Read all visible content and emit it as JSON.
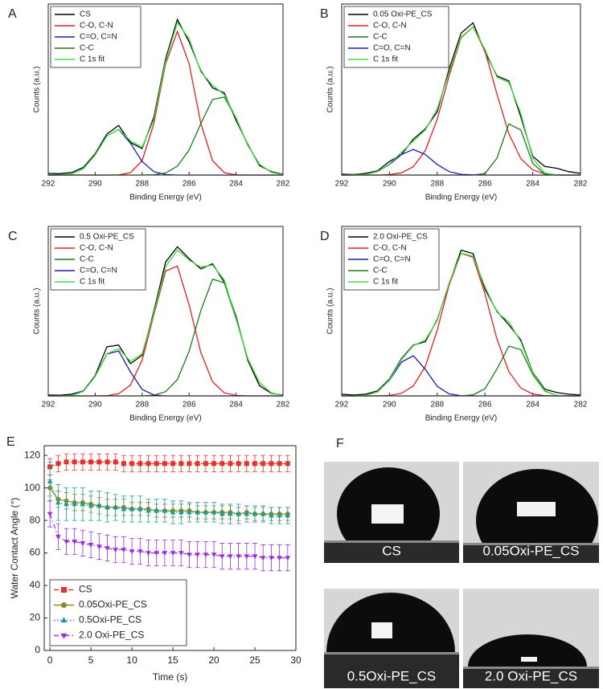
{
  "chart_data": [
    {
      "type": "line",
      "panel_label": "A",
      "xlabel": "Binding Energy (eV)",
      "ylabel": "Counts (a.u.)",
      "x": [
        292,
        291.5,
        291,
        290.5,
        290,
        289.5,
        289,
        288.5,
        288,
        287.5,
        287,
        286.5,
        286,
        285.5,
        285,
        284.5,
        284,
        283.5,
        283,
        282.5,
        282
      ],
      "xlim": [
        292,
        282
      ],
      "xticks": [
        292,
        290,
        288,
        286,
        284,
        282
      ],
      "ylim": [
        0,
        100
      ],
      "series": [
        {
          "name": "CS",
          "color": "#000000",
          "values": [
            1,
            0.8,
            1.5,
            4.5,
            12.5,
            24,
            29,
            19,
            15.5,
            34,
            68,
            91,
            78,
            61,
            51,
            48,
            32,
            18,
            5.5,
            2,
            0.5
          ]
        },
        {
          "name": "C-O, C-N",
          "color": "#e02020",
          "values": [
            0,
            0,
            0,
            0,
            0,
            0,
            0.1,
            1.4,
            8.4,
            30.2,
            65.1,
            84,
            65.1,
            30.2,
            8.4,
            1.4,
            0.1,
            0,
            0,
            0,
            0
          ]
        },
        {
          "name": "C=O, C=N",
          "color": "#1a1ab0",
          "values": [
            0,
            0.1,
            0.7,
            3.7,
            11.8,
            22.9,
            26.7,
            18.7,
            7.9,
            2.0,
            0.3,
            0,
            0,
            0,
            0,
            0,
            0,
            0,
            0,
            0,
            0
          ]
        },
        {
          "name": "C-C",
          "color": "#1a7a1a",
          "values": [
            0,
            0,
            0,
            0,
            0,
            0,
            0,
            0,
            0,
            0.2,
            1.2,
            5.2,
            14.6,
            30.1,
            44.2,
            45.6,
            33.4,
            17.4,
            6.3,
            1.6,
            0.3
          ]
        },
        {
          "name": "C 1s fit",
          "color": "#3ee03e",
          "values": [
            0,
            0.1,
            0.7,
            3.7,
            11.8,
            22.9,
            26.8,
            20.1,
            16.3,
            32.4,
            66.6,
            89.2,
            79.7,
            60.3,
            52.6,
            47.0,
            33.5,
            17.4,
            6.3,
            1.6,
            0.3
          ]
        }
      ]
    },
    {
      "type": "line",
      "panel_label": "B",
      "xlabel": "Binding Energy (eV)",
      "ylabel": "Counts (a.u.)",
      "x": [
        292,
        291.5,
        291,
        290.5,
        290,
        289.5,
        289,
        288.5,
        288,
        287.5,
        287,
        286.5,
        286,
        285.5,
        285,
        284.5,
        284,
        283.5,
        283,
        282.5,
        282
      ],
      "xlim": [
        292,
        282
      ],
      "xticks": [
        292,
        290,
        288,
        286,
        284,
        282
      ],
      "ylim": [
        0,
        100
      ],
      "series": [
        {
          "name": "0.05 Oxi-PE_CS",
          "color": "#000000",
          "values": [
            0.5,
            0.3,
            1,
            2.5,
            8,
            12,
            21,
            27,
            37,
            62,
            83,
            89,
            72,
            58,
            55,
            34,
            11,
            5,
            4,
            2,
            1
          ]
        },
        {
          "name": "C-O, C-N",
          "color": "#e02020",
          "values": [
            0,
            0,
            0,
            0,
            0.3,
            1.3,
            4.9,
            14.3,
            32.6,
            58.0,
            80.3,
            86.6,
            72.6,
            47.5,
            24.2,
            9.6,
            3.0,
            0.7,
            0.1,
            0,
            0
          ]
        },
        {
          "name": "C-C",
          "color": "#1a7a1a",
          "values": [
            0,
            0,
            0,
            0,
            0,
            0,
            0,
            0,
            0,
            0,
            0,
            0,
            0.9,
            9.8,
            29.9,
            26.4,
            6.8,
            0.5,
            0,
            0,
            0
          ]
        },
        {
          "name": "C=O, C=N",
          "color": "#1a1ab0",
          "values": [
            0,
            0.1,
            0.4,
            2.0,
            6.2,
            12.0,
            15,
            12.0,
            6.2,
            2.0,
            0.4,
            0.1,
            0,
            0,
            0,
            0,
            0,
            0,
            0,
            0,
            0
          ]
        },
        {
          "name": "C 1s fit",
          "color": "#3ee03e",
          "values": [
            0,
            0.1,
            0.4,
            2.0,
            6.5,
            13.3,
            19.9,
            26.3,
            38.8,
            60.0,
            80.7,
            86.7,
            73.5,
            57.3,
            54.1,
            36.0,
            9.8,
            1.2,
            0.1,
            0,
            0
          ]
        }
      ]
    },
    {
      "type": "line",
      "panel_label": "C",
      "xlabel": "Binding Energy (eV)",
      "ylabel": "Counts (a.u.)",
      "x": [
        292,
        291.5,
        291,
        290.5,
        290,
        289.5,
        289,
        288.5,
        288,
        287.5,
        287,
        286.5,
        286,
        285.5,
        285,
        284.5,
        284,
        283.5,
        283,
        282.5,
        282
      ],
      "xlim": [
        292,
        282
      ],
      "xticks": [
        292,
        290,
        288,
        286,
        284,
        282
      ],
      "ylim": [
        0,
        100
      ],
      "series": [
        {
          "name": "0.5 Oxi-PE_CS",
          "color": "#000000",
          "values": [
            0.5,
            0.4,
            1,
            3,
            12,
            29,
            30,
            19,
            24,
            50,
            79,
            88,
            81,
            75,
            78,
            67,
            47,
            21,
            6,
            1.5,
            0.5
          ]
        },
        {
          "name": "C-O, C-N",
          "color": "#e02020",
          "values": [
            0,
            0,
            0,
            0,
            0,
            0.2,
            1.3,
            6.3,
            21.1,
            47.9,
            73.7,
            76.6,
            53.8,
            25.6,
            8.3,
            1.8,
            0.3,
            0,
            0,
            0,
            0
          ]
        },
        {
          "name": "C-C",
          "color": "#1a7a1a",
          "values": [
            0,
            0,
            0,
            0,
            0,
            0,
            0,
            0,
            0,
            0.4,
            2.5,
            9.6,
            26.3,
            50.4,
            68.9,
            66.7,
            45.4,
            22.0,
            7.8,
            1.8,
            0.3
          ]
        },
        {
          "name": "C=O, C=N",
          "color": "#1a1ab0",
          "values": [
            0,
            0,
            0.3,
            2.7,
            11.5,
            24.7,
            26.5,
            14.2,
            3.8,
            0.5,
            0,
            0,
            0,
            0,
            0,
            0,
            0,
            0,
            0,
            0,
            0
          ]
        },
        {
          "name": "C 1s fit",
          "color": "#3ee03e",
          "values": [
            0,
            0,
            0.3,
            2.7,
            11.5,
            24.9,
            27.8,
            20.5,
            24.9,
            48.8,
            76.2,
            86.2,
            80.1,
            76.0,
            77.2,
            68.5,
            45.7,
            22.0,
            7.8,
            1.8,
            0.3
          ]
        }
      ]
    },
    {
      "type": "line",
      "panel_label": "D",
      "xlabel": "Binding Energy (eV)",
      "ylabel": "Counts (a.u.)",
      "x": [
        292,
        291.5,
        291,
        290.5,
        290,
        289.5,
        289,
        288.5,
        288,
        287.5,
        287,
        286.5,
        286,
        285.5,
        285,
        284.5,
        284,
        283.5,
        283,
        282.5,
        282
      ],
      "xlim": [
        292,
        282
      ],
      "xticks": [
        292,
        290,
        288,
        286,
        284,
        282
      ],
      "ylim": [
        0,
        100
      ],
      "series": [
        {
          "name": "2.0 Oxi-PE_CS",
          "color": "#000000",
          "values": [
            1,
            0.5,
            1,
            3,
            10,
            22,
            30,
            32,
            45,
            66,
            86,
            84,
            63,
            50,
            42,
            33,
            14,
            4,
            2,
            1,
            0.5
          ]
        },
        {
          "name": "C-O, C-N",
          "color": "#e02020",
          "values": [
            0,
            0,
            0,
            0,
            0.3,
            1.5,
            5.9,
            17.4,
            38.7,
            65.5,
            84.1,
            81.8,
            60.3,
            33.7,
            14.3,
            4.6,
            1.1,
            0.2,
            0,
            0,
            0
          ]
        },
        {
          "name": "C=O, C=N",
          "color": "#1a1ab0",
          "values": [
            0,
            0,
            0.3,
            2.4,
            9.2,
            19.9,
            23.7,
            15.7,
            5.7,
            1.2,
            0.1,
            0,
            0,
            0,
            0,
            0,
            0,
            0,
            0,
            0,
            0
          ]
        },
        {
          "name": "C-C",
          "color": "#1a7a1a",
          "values": [
            0,
            0,
            0,
            0,
            0,
            0,
            0,
            0,
            0,
            0,
            0,
            0.6,
            4.2,
            15.8,
            29.4,
            27.3,
            12.7,
            2.9,
            0.3,
            0,
            0
          ]
        },
        {
          "name": "C 1s fit",
          "color": "#3ee03e",
          "values": [
            0,
            0,
            0.3,
            2.4,
            9.5,
            21.4,
            29.6,
            33.1,
            44.4,
            66.7,
            84.2,
            82.4,
            64.5,
            49.5,
            43.7,
            31.9,
            13.8,
            3.1,
            0.3,
            0,
            0
          ]
        }
      ]
    },
    {
      "type": "line",
      "panel_label": "E",
      "xlabel": "Time (s)",
      "ylabel": "Water Contact Angle (°)",
      "x": [
        0,
        1,
        2,
        3,
        4,
        5,
        6,
        7,
        8,
        9,
        10,
        11,
        12,
        13,
        14,
        15,
        16,
        17,
        18,
        19,
        20,
        21,
        22,
        23,
        24,
        25,
        26,
        27,
        28,
        29
      ],
      "xlim": [
        -0.7,
        30
      ],
      "xticks": [
        0,
        5,
        10,
        15,
        20,
        25,
        30
      ],
      "ylim": [
        0,
        126
      ],
      "yticks": [
        0,
        20,
        40,
        60,
        80,
        100,
        120
      ],
      "series": [
        {
          "name": "CS",
          "color": "#e8302a",
          "marker": "square",
          "dash": "dashed",
          "values": [
            113,
            115,
            116,
            116,
            116,
            116,
            116,
            116,
            116,
            115,
            115,
            115,
            115,
            115,
            115,
            115,
            115,
            115,
            115,
            115,
            115,
            115,
            115,
            115,
            115,
            115,
            115,
            115,
            115,
            115
          ],
          "errors": [
            5,
            5,
            5,
            5,
            5,
            5,
            5,
            5,
            5,
            5,
            5,
            5,
            5,
            5,
            5,
            5,
            5,
            5,
            5,
            5,
            5,
            5,
            5,
            5,
            5,
            5,
            5,
            5,
            5,
            5
          ]
        },
        {
          "name": "0.05Oxi-PE_CS",
          "color": "#8a8a22",
          "marker": "circle",
          "dash": "solid",
          "values": [
            100,
            93,
            92,
            91,
            91,
            90,
            89,
            88,
            88,
            88,
            87,
            87,
            87,
            86,
            86,
            86,
            86,
            86,
            85,
            85,
            85,
            85,
            85,
            84,
            85,
            84,
            84,
            84,
            84,
            84
          ],
          "errors": [
            5,
            5,
            5,
            5,
            5,
            5,
            5,
            5,
            5,
            5,
            4,
            4,
            4,
            4,
            4,
            4,
            4,
            4,
            4,
            4,
            4,
            4,
            4,
            4,
            4,
            4,
            4,
            4,
            4,
            4
          ]
        },
        {
          "name": "0.5Oxi-PE_CS",
          "color": "#1a9a9a",
          "marker": "triangle",
          "dash": "dotted",
          "values": [
            104,
            91,
            90,
            90,
            90,
            89,
            89,
            88,
            88,
            87,
            87,
            87,
            86,
            86,
            86,
            85,
            85,
            85,
            85,
            85,
            85,
            84,
            84,
            84,
            84,
            84,
            84,
            83,
            83,
            83
          ],
          "errors": [
            12,
            11,
            10,
            10,
            10,
            9,
            9,
            9,
            8,
            8,
            8,
            8,
            7,
            7,
            7,
            7,
            7,
            6,
            6,
            6,
            6,
            6,
            6,
            6,
            5,
            5,
            5,
            5,
            5,
            5
          ]
        },
        {
          "name": "2.0 Oxi-PE_CS",
          "color": "#9b30e0",
          "marker": "triangle-down",
          "dash": "dashdot",
          "values": [
            84,
            70,
            67,
            67,
            66,
            65,
            64,
            63,
            62,
            62,
            61,
            61,
            60,
            60,
            60,
            60,
            60,
            59,
            59,
            59,
            59,
            58,
            58,
            58,
            58,
            58,
            57,
            57,
            57,
            57
          ],
          "errors": [
            8,
            8,
            8,
            8,
            8,
            8,
            8,
            8,
            8,
            8,
            8,
            8,
            8,
            8,
            8,
            8,
            8,
            8,
            8,
            8,
            8,
            8,
            8,
            8,
            8,
            8,
            8,
            8,
            8,
            8
          ]
        }
      ]
    }
  ],
  "photos": {
    "panel_label": "F",
    "labels": [
      "CS",
      "0.05Oxi-PE_CS",
      "0.5Oxi-PE_CS",
      "2.0 Oxi-PE_CS"
    ]
  }
}
